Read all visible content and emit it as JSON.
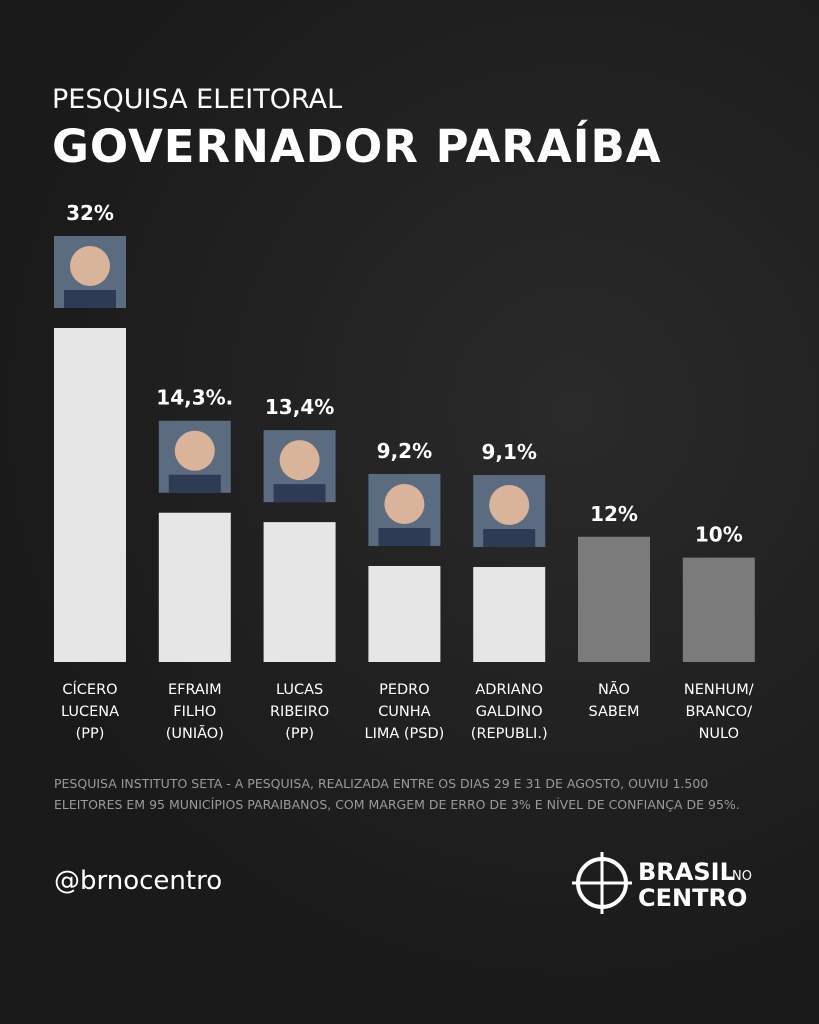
{
  "header": {
    "kicker": "PESQUISA ELEITORAL",
    "title": "GOVERNADOR PARAÍBA"
  },
  "chart_data": {
    "type": "bar",
    "categories": [
      [
        "CÍCERO",
        "LUCENA",
        "(PP)"
      ],
      [
        "EFRAIM",
        "FILHO",
        "(UNIÃO)"
      ],
      [
        "LUCAS",
        "RIBEIRO",
        "(PP)"
      ],
      [
        "PEDRO",
        "CUNHA",
        "LIMA (PSD)"
      ],
      [
        "ADRIANO",
        "GALDINO",
        "(REPUBLI.)"
      ],
      [
        "NÃO",
        "SABEM"
      ],
      [
        "NENHUM/",
        "BRANCO/",
        "NULO"
      ]
    ],
    "values": [
      32,
      14.3,
      13.4,
      9.2,
      9.1,
      12,
      10
    ],
    "value_labels": [
      "32%",
      "14,3%.",
      "13,4%",
      "9,2%",
      "9,1%",
      "12%",
      "10%"
    ],
    "colors": [
      "#e6e6e6",
      "#e6e6e6",
      "#e6e6e6",
      "#e6e6e6",
      "#e6e6e6",
      "#7b7b7b",
      "#7b7b7b"
    ],
    "ylim": [
      0,
      32
    ]
  },
  "footer": {
    "note": "PESQUISA INSTITUTO SETA - A PESQUISA, REALIZADA ENTRE OS DIAS 29 E 31 DE AGOSTO, OUVIU 1.500 ELEITORES EM 95 MUNICÍPIOS PARAIBANOS, COM MARGEM DE ERRO DE 3% E NÍVEL DE CONFIANÇA DE 95%.",
    "handle": "@brnocentro",
    "logo": {
      "line1": "BRASIL",
      "small": "NO",
      "line2": "CENTRO"
    }
  }
}
